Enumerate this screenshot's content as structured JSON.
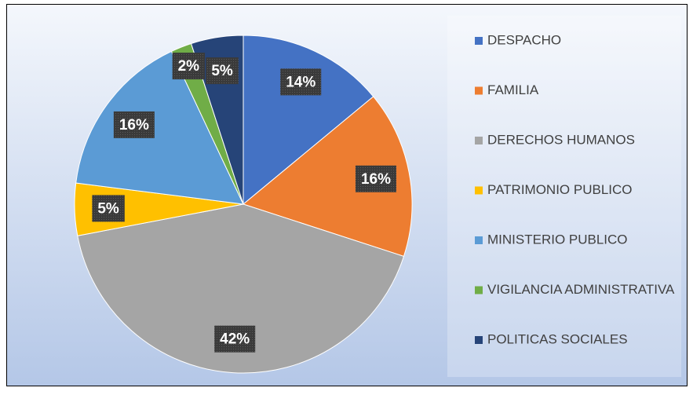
{
  "chart_data": {
    "type": "pie",
    "categories": [
      "DESPACHO",
      "FAMILIA",
      "DERECHOS HUMANOS",
      "PATRIMONIO PUBLICO",
      "MINISTERIO PUBLICO",
      "VIGILANCIA ADMINISTRATIVA",
      "POLITICAS SOCIALES"
    ],
    "values": [
      14,
      16,
      42,
      5,
      16,
      2,
      5
    ],
    "value_labels": [
      "14%",
      "16%",
      "42%",
      "5%",
      "16%",
      "2%",
      "5%"
    ],
    "colors": [
      "#4472c4",
      "#ed7d31",
      "#a5a5a5",
      "#ffc000",
      "#5b9bd5",
      "#70ad47",
      "#264478"
    ],
    "legend": "right"
  }
}
